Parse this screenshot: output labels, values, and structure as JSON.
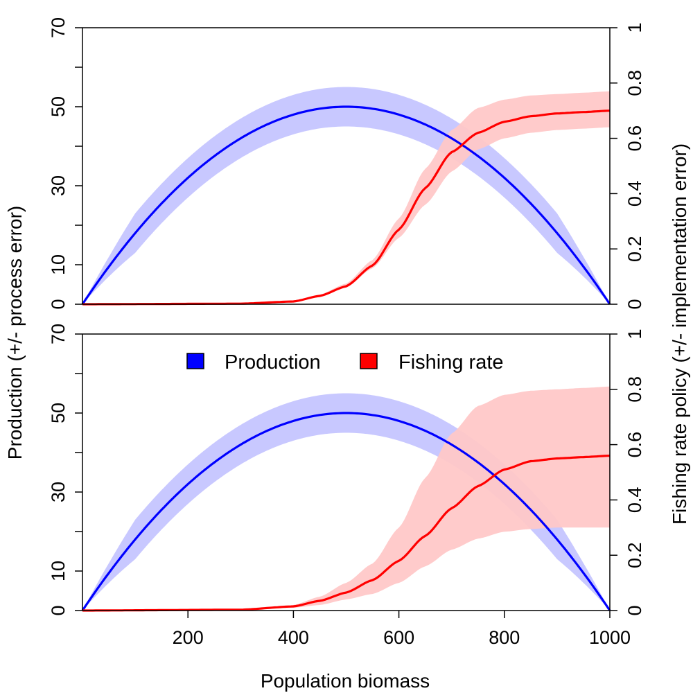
{
  "chart_data": {
    "type": "line",
    "x_label": "Population biomass",
    "y_left_label": "Production (+/- process error)",
    "y_right_label": "Fishing rate policy (+/- implementation error)",
    "x_range": [
      0,
      1000
    ],
    "x_ticks": [
      200,
      400,
      600,
      800,
      1000
    ],
    "y_left_range": [
      0,
      70
    ],
    "y_left_ticks": [
      0,
      10,
      30,
      50,
      70
    ],
    "y_left_minor_ticks": [
      20,
      40,
      60
    ],
    "y_right_range": [
      0,
      1
    ],
    "y_right_ticks": [
      0,
      0.2,
      0.4,
      0.6,
      0.8,
      1
    ],
    "legend": {
      "placement": "top-center of lower panel",
      "entries": [
        {
          "label": "Production",
          "color": "#0000ff"
        },
        {
          "label": "Fishing rate",
          "color": "#ff0000"
        }
      ]
    },
    "colors": {
      "production_line": "#0000ff",
      "production_band": "#c8c8ff",
      "fishing_line": "#ff0000",
      "fishing_band": "#ffc8c8"
    },
    "panels": [
      {
        "name": "top",
        "production": {
          "model": "logistic",
          "formula": "y = 0.2 * x * (1 - x/1000)",
          "peak": {
            "x": 500,
            "y": 50
          },
          "band_halfwidth": 5
        },
        "fishing_rate": {
          "x": [
            0,
            300,
            400,
            450,
            500,
            550,
            600,
            650,
            700,
            750,
            800,
            850,
            900,
            950,
            1000
          ],
          "mean": [
            0,
            0.002,
            0.01,
            0.03,
            0.065,
            0.14,
            0.27,
            0.42,
            0.55,
            0.62,
            0.66,
            0.68,
            0.69,
            0.695,
            0.7
          ],
          "lower": [
            0,
            0.002,
            0.01,
            0.03,
            0.06,
            0.13,
            0.24,
            0.36,
            0.48,
            0.56,
            0.6,
            0.62,
            0.63,
            0.635,
            0.64
          ],
          "upper": [
            0,
            0.002,
            0.012,
            0.035,
            0.075,
            0.16,
            0.31,
            0.49,
            0.63,
            0.71,
            0.74,
            0.755,
            0.76,
            0.765,
            0.77
          ]
        }
      },
      {
        "name": "bottom",
        "production": {
          "model": "logistic",
          "formula": "y = 0.2 * x * (1 - x/1000)",
          "peak": {
            "x": 500,
            "y": 50
          },
          "band_halfwidth": 5
        },
        "fishing_rate": {
          "x": [
            0,
            300,
            400,
            450,
            500,
            550,
            600,
            650,
            700,
            750,
            800,
            850,
            900,
            950,
            1000
          ],
          "mean": [
            0,
            0.003,
            0.015,
            0.035,
            0.065,
            0.11,
            0.18,
            0.27,
            0.37,
            0.45,
            0.51,
            0.54,
            0.55,
            0.555,
            0.56
          ],
          "lower": [
            0,
            0.002,
            0.01,
            0.02,
            0.04,
            0.06,
            0.1,
            0.16,
            0.22,
            0.26,
            0.285,
            0.295,
            0.3,
            0.3,
            0.3
          ],
          "upper": [
            0,
            0.004,
            0.02,
            0.05,
            0.1,
            0.17,
            0.3,
            0.48,
            0.64,
            0.74,
            0.78,
            0.795,
            0.8,
            0.805,
            0.81
          ]
        }
      }
    ]
  }
}
